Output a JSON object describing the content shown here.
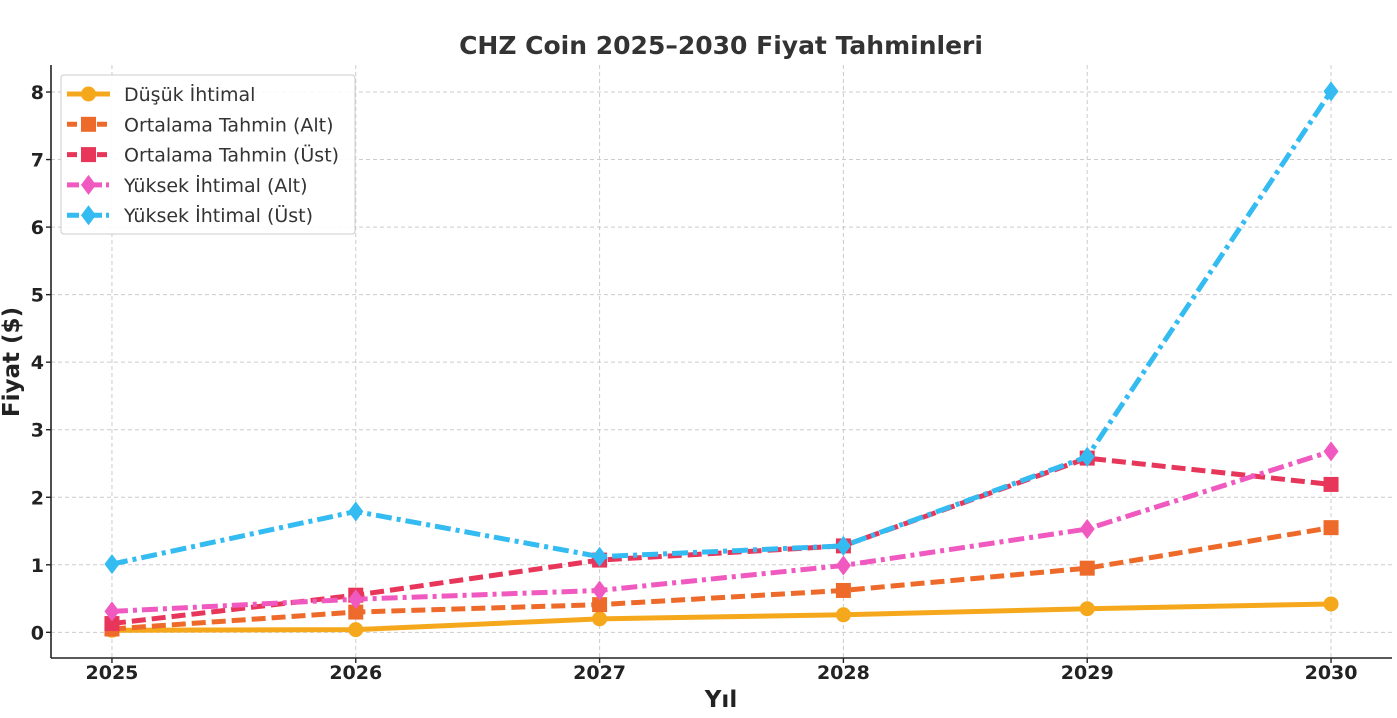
{
  "chart_data": {
    "type": "line",
    "title": "CHZ Coin 2025–2030 Fiyat Tahminleri",
    "xlabel": "Yıl",
    "ylabel": "Fiyat ($)",
    "x": [
      2025,
      2026,
      2027,
      2028,
      2029,
      2030
    ],
    "x_tick_labels": [
      "2025",
      "2026",
      "2027",
      "2028",
      "2029",
      "2030"
    ],
    "yticks": [
      0,
      1,
      2,
      3,
      4,
      5,
      6,
      7,
      8
    ],
    "y_tick_labels": [
      "0",
      "1",
      "2",
      "3",
      "4",
      "5",
      "6",
      "7",
      "8"
    ],
    "ylim": [
      -0.38,
      8.4
    ],
    "xlim": [
      2024.75,
      2030.25
    ],
    "grid": true,
    "legend_position": "top-left",
    "series": [
      {
        "name": "Düşük İhtimal",
        "color": "#F5A81C",
        "line_style": "solid",
        "marker": "circle",
        "values": [
          0.03,
          0.04,
          0.2,
          0.26,
          0.35,
          0.42
        ]
      },
      {
        "name": "Ortalama Tahmin (Alt)",
        "color": "#EE6A2A",
        "line_style": "dashed",
        "marker": "square",
        "values": [
          0.05,
          0.3,
          0.41,
          0.62,
          0.95,
          1.55
        ]
      },
      {
        "name": "Ortalama Tahmin (Üst)",
        "color": "#E8365A",
        "line_style": "dashed",
        "marker": "square",
        "values": [
          0.13,
          0.55,
          1.07,
          1.28,
          2.58,
          2.19
        ]
      },
      {
        "name": "Yüksek İhtimal (Alt)",
        "color": "#F059C0",
        "line_style": "dashdot",
        "marker": "diamond",
        "values": [
          0.31,
          0.49,
          0.62,
          0.99,
          1.53,
          2.68
        ]
      },
      {
        "name": "Yüksek İhtimal (Üst)",
        "color": "#33BBF2",
        "line_style": "dashdot",
        "marker": "diamond",
        "values": [
          1.01,
          1.79,
          1.12,
          1.28,
          2.6,
          8.01
        ]
      }
    ]
  }
}
